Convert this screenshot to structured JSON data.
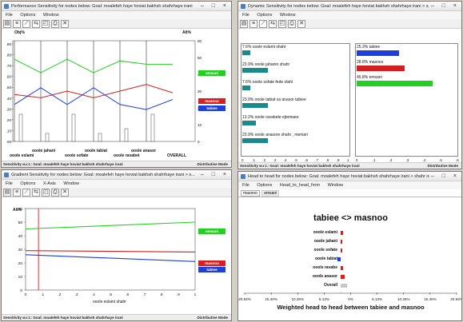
{
  "windows": {
    "perf": {
      "title": "Performance Sensitivity for nodes below: Goal: moalefeh haye hoviat bakhsh shahrhaye irani",
      "menu": [
        "File",
        "Options",
        "Window"
      ],
      "left_axis_label": "Obj%",
      "right_axis_label": "Alt%",
      "left_ticks": [
        ".90",
        ".80",
        ".70",
        ".60",
        ".50",
        ".40",
        ".30",
        ".20",
        ".10",
        ".00"
      ],
      "right_ticks": [
        "60",
        "50",
        "40",
        "30",
        "20",
        "10",
        "0"
      ],
      "x_labels": [
        "ooole jahani",
        "ooole tabiat",
        "ooole anasor",
        "OVERALL"
      ],
      "x_labels2": [
        "ooole eslami",
        "ooole sofate",
        "ooole ravabet"
      ],
      "tags": [
        "emsani",
        "masnoo",
        "tabiee"
      ],
      "status_left": "Sensitivity w.r.t.: Goal: moalefeh haye hoviat bakhsh shahrhaye irani",
      "status_right": "Distributive Mode"
    },
    "dyn": {
      "title": "Dynamic Sensitivity for nodes below: Goal: moalefeh haye hoviat bakhsh shahrhaye irani > s...",
      "menu": [
        "File",
        "Options",
        "Window"
      ],
      "left_bars": [
        {
          "label": "7.6% ooole eslami shahr",
          "value": 7.6
        },
        {
          "label": "23.9% ooole jahanin shahr",
          "value": 23.9
        },
        {
          "label": "7.6% ooole sofate fede olahi",
          "value": 7.6
        },
        {
          "label": "23.9% ooole tabiat va anasor tabiee",
          "value": 23.9
        },
        {
          "label": "13.2% ooole ravabete ejtemaee",
          "value": 13.2
        },
        {
          "label": "23.9% ooole anasore shahr , memari",
          "value": 23.9
        }
      ],
      "right_bars": [
        {
          "label": "25.3% tabiee",
          "value": 25.3,
          "color": "#1f3fd8"
        },
        {
          "label": "28.8% masnoo",
          "value": 28.8,
          "color": "#d42020"
        },
        {
          "label": "45.8% emsani",
          "value": 45.8,
          "color": "#22d022"
        }
      ],
      "left_ticks": [
        "0",
        ".1",
        ".2",
        ".3",
        ".4",
        ".5",
        ".6",
        ".7",
        ".8",
        ".9",
        "1"
      ],
      "right_ticks": [
        "0",
        ".1",
        ".2",
        ".3",
        ".4",
        ".5",
        ".6"
      ],
      "status_left": "Sensitivity w.r.t.: Goal: moalefeh haye hoviat bakhsh shahrhaye irani",
      "status_right": "Distributive Mode"
    },
    "grad": {
      "title": "Gradient Sensitivity for nodes below: Goal: moalefeh haye hoviat bakhsh shahrhaye irani > s...",
      "menu": [
        "File",
        "Options",
        "X-Axis",
        "Window"
      ],
      "y_label": "Alt%",
      "y_ticks": [
        "60",
        "50",
        "40",
        "30",
        "20",
        "10",
        "0"
      ],
      "x_ticks": [
        "0",
        ".1",
        ".2",
        ".3",
        ".4",
        ".5",
        ".6",
        ".7",
        ".8",
        ".9",
        "1"
      ],
      "x_title": "ooole eslami shahr",
      "tags": [
        "emsani",
        "masnoo",
        "tabiee"
      ],
      "status_left": "Sensitivity w.r.t.: Goal: moalefeh haye hoviat bakhsh shahrhaye irani",
      "status_right": "Distributive Mode"
    },
    "h2h": {
      "title": "Head to head for nodes below: Goal: moalefeh haye hoviat bakhsh shahrhaye irani > shahr irani +",
      "menu": [
        "File",
        "Options",
        "Head_to_head_from",
        "Window"
      ],
      "tabs": [
        "masnoo",
        "emsani"
      ],
      "chart_title": "tabiee <> masnoo",
      "rows": [
        "ooole eslami",
        "ooole jahani",
        "ooole sofate",
        "ooole tabiat",
        "ooole ravabe",
        "ooole anasor",
        "Overall"
      ],
      "x_ticks": [
        "20.53%",
        "15.40%",
        "10.26%",
        "5.13%",
        "0%",
        "5.13%",
        "10.26%",
        "15.40%",
        "20.53%"
      ],
      "footer": "Weighted head to head between tabiee and masnoo"
    }
  },
  "colors": {
    "emsani": "#22d022",
    "masnoo": "#d42020",
    "tabiee": "#1f3fd8",
    "teal": "#1a8a8a"
  },
  "chart_data": [
    {
      "type": "line",
      "title": "Performance Sensitivity",
      "categories": [
        "ooole eslami",
        "ooole jahani",
        "ooole sofate",
        "ooole tabiat",
        "ooole ravabet",
        "ooole anasor",
        "OVERALL"
      ],
      "ylabel": "Alt%",
      "ylim": [
        0,
        60
      ],
      "series": [
        {
          "name": "emsani",
          "values": [
            49,
            41,
            49,
            41,
            48,
            46,
            46
          ]
        },
        {
          "name": "masnoo",
          "values": [
            28,
            26,
            30,
            26,
            30,
            34,
            29
          ]
        },
        {
          "name": "tabiee",
          "values": [
            22,
            32,
            22,
            32,
            22,
            19,
            25
          ]
        }
      ]
    },
    {
      "type": "bar",
      "title": "Dynamic Sensitivity",
      "categories": [
        "ooole eslami shahr",
        "ooole jahanin shahr",
        "ooole sofate fede olahi",
        "ooole tabiat va anasor tabiee",
        "ooole ravabete ejtemaee",
        "ooole anasore shahr , memari"
      ],
      "values": [
        7.6,
        23.9,
        7.6,
        23.9,
        13.2,
        23.9
      ]
    },
    {
      "type": "line",
      "title": "Gradient Sensitivity",
      "xlabel": "ooole eslami shahr",
      "ylabel": "Alt%",
      "xlim": [
        0,
        1
      ],
      "ylim": [
        0,
        60
      ],
      "series": [
        {
          "name": "emsani",
          "x": [
            0,
            1
          ],
          "values": [
            45,
            50
          ]
        },
        {
          "name": "masnoo",
          "x": [
            0,
            1
          ],
          "values": [
            29,
            28
          ]
        },
        {
          "name": "tabiee",
          "x": [
            0,
            1
          ],
          "values": [
            26,
            21
          ]
        }
      ]
    }
  ]
}
